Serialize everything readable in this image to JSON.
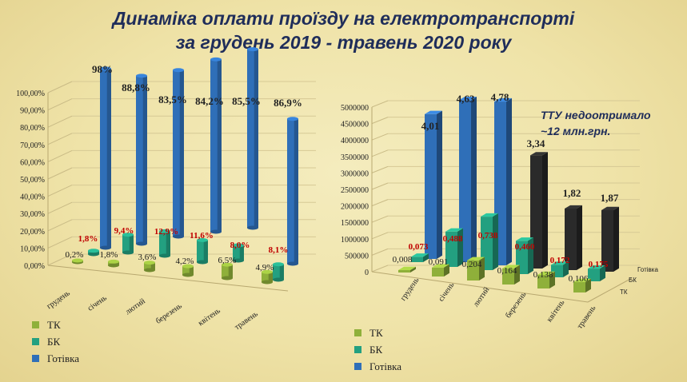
{
  "title_line1": "Динаміка оплати проїзду на електротранспорті",
  "title_line2": "за грудень 2019 - травень 2020 року",
  "note_line1": "ТТУ недоотримало",
  "note_line2": "~12 млн.грн.",
  "colors": {
    "tk": "#8fb03a",
    "bk": "#23a080",
    "hot": "#2f6fb8",
    "black": "#2a2a2a",
    "red_label": "#c00000"
  },
  "chart_data": [
    {
      "type": "bar",
      "categories": [
        "грудень",
        "січень",
        "лютий",
        "березень",
        "квітень",
        "травень"
      ],
      "series": [
        {
          "name": "ТК",
          "values": [
            0.2,
            1.8,
            3.6,
            4.2,
            6.5,
            4.9
          ],
          "labels": [
            "0,2%",
            "1,8%",
            "3,6%",
            "4,2%",
            "6,5%",
            "4,9%"
          ]
        },
        {
          "name": "БК",
          "values": [
            1.8,
            9.4,
            12.9,
            11.6,
            8.0,
            8.1
          ],
          "labels": [
            "1,8%",
            "9,4%",
            "12,9%",
            "11,6%",
            "8,0%",
            "8,1%"
          ]
        },
        {
          "name": "Готівка",
          "values": [
            98,
            88.8,
            83.5,
            84.2,
            85.5,
            86.9
          ],
          "labels": [
            "98%",
            "88,8%",
            "83,5%",
            "84,2%",
            "85,5%",
            "86,9%"
          ]
        }
      ],
      "y_ticks": [
        "0,00%",
        "10,00%",
        "20,00%",
        "30,00%",
        "40,00%",
        "50,00%",
        "60,00%",
        "70,00%",
        "80,00%",
        "90,00%",
        "100,00%"
      ],
      "ylim": [
        0,
        100
      ],
      "legend": [
        "ТК",
        "БК",
        "Готівка"
      ]
    },
    {
      "type": "bar",
      "categories": [
        "грудень",
        "січень",
        "лютий",
        "березень",
        "квітень",
        "травень"
      ],
      "series": [
        {
          "name": "ТК",
          "values": [
            8000,
            91000,
            204000,
            164000,
            138000,
            106000
          ],
          "labels": [
            "0,008",
            "0,091",
            "0,204",
            "0,164",
            "0,138",
            "0,106"
          ]
        },
        {
          "name": "БК",
          "values": [
            73000,
            488000,
            738000,
            460000,
            172000,
            175000
          ],
          "labels": [
            "0,073",
            "0,488",
            "0,738",
            "0,460",
            "0,172",
            "0,175"
          ]
        },
        {
          "name": "Готівка",
          "values": [
            4010000,
            4630000,
            4780000,
            3340000,
            1820000,
            1870000
          ],
          "labels": [
            "4,01",
            "4,63",
            "4,78",
            "3,34",
            "1,82",
            "1,87"
          ]
        }
      ],
      "y_ticks": [
        "0",
        "500000",
        "1000000",
        "1500000",
        "2000000",
        "2500000",
        "3000000",
        "3500000",
        "4000000",
        "4500000",
        "5000000"
      ],
      "depth_labels": [
        "Готівка",
        "БК",
        "ТК"
      ],
      "ylim": [
        0,
        5000000
      ],
      "legend": [
        "ТК",
        "БК",
        "Готівка"
      ]
    }
  ]
}
